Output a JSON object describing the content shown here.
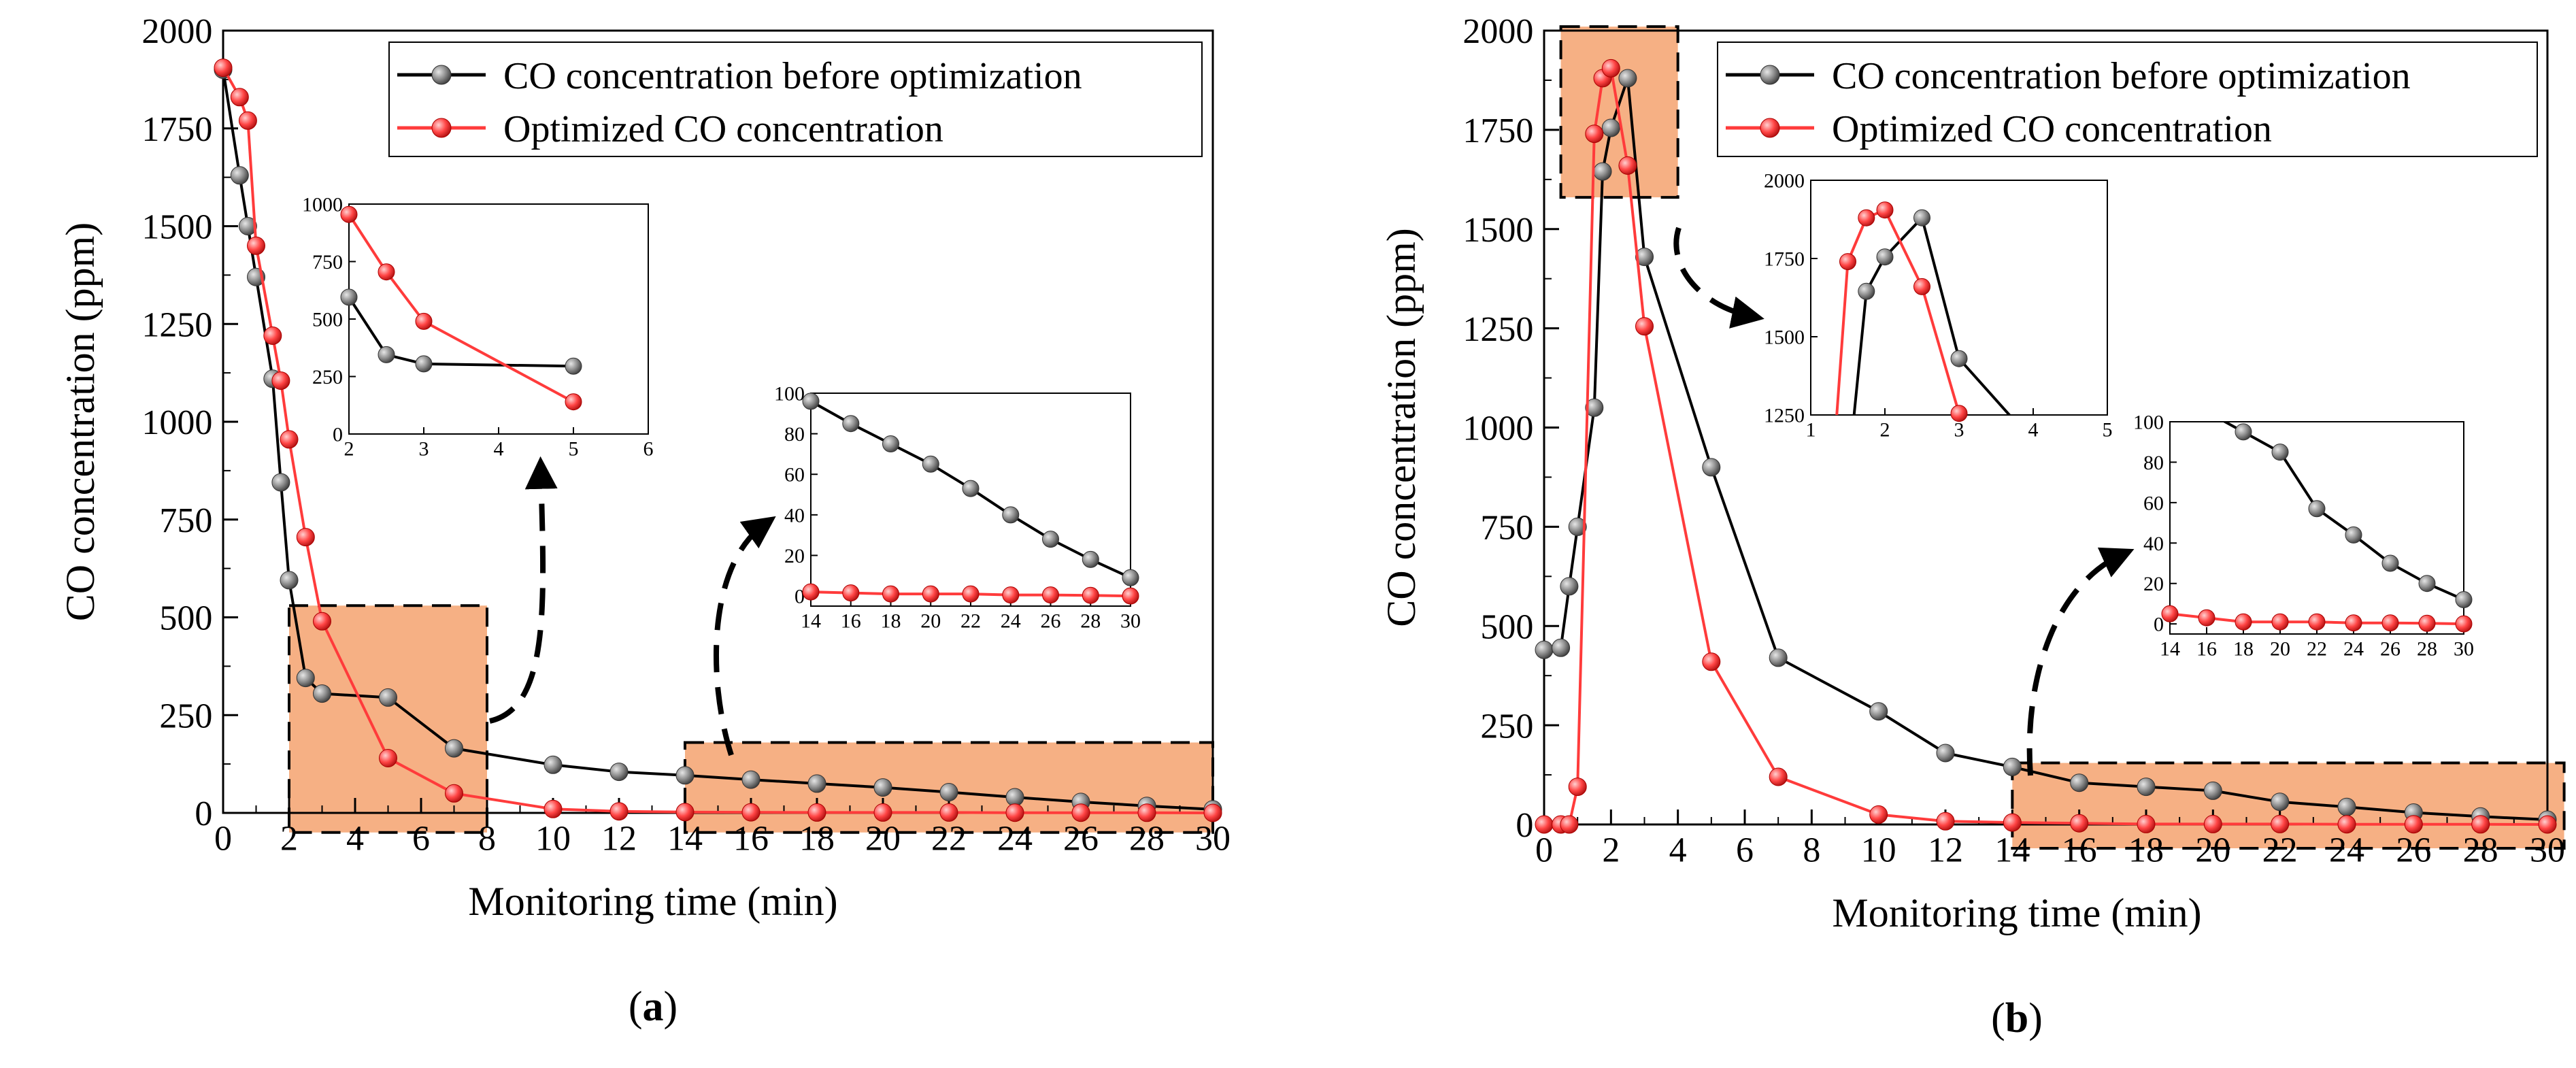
{
  "colors": {
    "before": "#000000",
    "optimized": "#ff3b3b",
    "marker_before": "#8a8a8a",
    "marker_optimized": "#ff4545",
    "highlight": "#f6b084"
  },
  "chart_data": [
    {
      "type": "line",
      "panel_label": "(a)",
      "panel_letter": "a",
      "xlabel": "Monitoring time (min)",
      "ylabel": "CO concentration (ppm)",
      "xlim": [
        0,
        30
      ],
      "ylim": [
        0,
        2000
      ],
      "xticks": [
        0,
        2,
        4,
        6,
        8,
        10,
        12,
        14,
        16,
        18,
        20,
        22,
        24,
        26,
        28,
        30
      ],
      "yticks": [
        0,
        250,
        500,
        750,
        1000,
        1250,
        1500,
        1750,
        2000
      ],
      "legend_position": "top-right",
      "series": [
        {
          "name": "CO concentration before optimization",
          "x": [
            0,
            0.5,
            0.75,
            1,
            1.5,
            1.75,
            2,
            2.5,
            3,
            5,
            7,
            10,
            12,
            14,
            16,
            18,
            20,
            22,
            24,
            26,
            28,
            30
          ],
          "y": [
            1900,
            1630,
            1500,
            1370,
            1110,
            845,
            595,
            345,
            305,
            295,
            165,
            123,
            105,
            96,
            85,
            75,
            65,
            53,
            40,
            28,
            18,
            9
          ]
        },
        {
          "name": "Optimized CO concentration",
          "x": [
            0,
            0.5,
            0.75,
            1,
            1.5,
            1.75,
            2,
            2.5,
            3,
            5,
            7,
            10,
            12,
            14,
            16,
            18,
            20,
            22,
            24,
            26,
            28,
            30
          ],
          "y": [
            1905,
            1830,
            1770,
            1450,
            1220,
            1105,
            955,
            705,
            490,
            140,
            50,
            10,
            4,
            2,
            1.5,
            1,
            1,
            1,
            0.5,
            0.5,
            0.3,
            0
          ]
        }
      ],
      "highlight_boxes": [
        {
          "x": [
            2,
            8
          ],
          "y": [
            -50,
            530
          ]
        },
        {
          "x": [
            14,
            30
          ],
          "y": [
            -50,
            180
          ]
        }
      ],
      "insets": [
        {
          "xlim": [
            2,
            6
          ],
          "ylim": [
            0,
            1000
          ],
          "xticks": [
            2,
            3,
            4,
            5,
            6
          ],
          "yticks": [
            0,
            250,
            500,
            750,
            1000
          ]
        },
        {
          "xlim": [
            14,
            30
          ],
          "ylim": [
            -5,
            100
          ],
          "xticks": [
            14,
            16,
            18,
            20,
            22,
            24,
            26,
            28,
            30
          ],
          "yticks": [
            0,
            20,
            40,
            60,
            80,
            100
          ]
        }
      ]
    },
    {
      "type": "line",
      "panel_label": "(b)",
      "panel_letter": "b",
      "xlabel": "Monitoring time (min)",
      "ylabel": "CO concentration (ppm)",
      "xlim": [
        0,
        30
      ],
      "ylim": [
        0,
        2000
      ],
      "xticks": [
        0,
        2,
        4,
        6,
        8,
        10,
        12,
        14,
        16,
        18,
        20,
        22,
        24,
        26,
        28,
        30
      ],
      "yticks": [
        0,
        250,
        500,
        750,
        1000,
        1250,
        1500,
        1750,
        2000
      ],
      "legend_position": "top-right",
      "series": [
        {
          "name": "CO concentration before optimization",
          "x": [
            0,
            0.5,
            0.75,
            1,
            1.5,
            1.75,
            2,
            2.5,
            3,
            5,
            7,
            10,
            12,
            14,
            16,
            18,
            20,
            22,
            24,
            26,
            28,
            30
          ],
          "y": [
            440,
            445,
            600,
            750,
            1050,
            1645,
            1755,
            1880,
            1430,
            900,
            420,
            285,
            180,
            145,
            105,
            95,
            85,
            57,
            44,
            30,
            20,
            12
          ]
        },
        {
          "name": "Optimized CO concentration",
          "x": [
            0,
            0.5,
            0.75,
            1,
            1.5,
            1.75,
            2,
            2.5,
            3,
            5,
            7,
            10,
            12,
            14,
            16,
            18,
            20,
            22,
            24,
            26,
            28,
            30
          ],
          "y": [
            0,
            0,
            0,
            95,
            1740,
            1880,
            1905,
            1660,
            1255,
            410,
            120,
            25,
            8,
            5,
            3,
            1,
            1,
            1,
            0.5,
            0.5,
            0.3,
            0
          ]
        }
      ],
      "highlight_boxes": [
        {
          "x": [
            0.5,
            4
          ],
          "y": [
            1580,
            2010
          ]
        },
        {
          "x": [
            14,
            30.5
          ],
          "y": [
            -60,
            155
          ]
        }
      ],
      "insets": [
        {
          "xlim": [
            1,
            5
          ],
          "ylim": [
            1250,
            2000
          ],
          "xticks": [
            1,
            2,
            3,
            4,
            5
          ],
          "yticks": [
            1250,
            1500,
            1750,
            2000
          ]
        },
        {
          "xlim": [
            14,
            30
          ],
          "ylim": [
            -5,
            100
          ],
          "xticks": [
            14,
            16,
            18,
            20,
            22,
            24,
            26,
            28,
            30
          ],
          "yticks": [
            0,
            20,
            40,
            60,
            80,
            100
          ]
        }
      ]
    }
  ]
}
